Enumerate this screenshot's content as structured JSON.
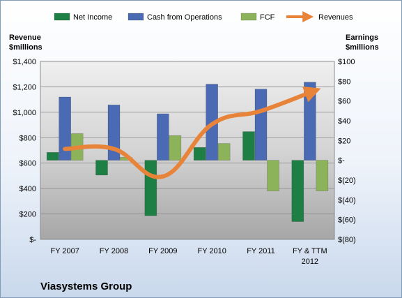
{
  "chart_data": {
    "type": "bar",
    "title": "Viasystems Group",
    "categories": [
      "FY 2007",
      "FY 2008",
      "FY 2009",
      "FY 2010",
      "FY 2011",
      "FY & TTM 2012"
    ],
    "series": [
      {
        "name": "Net Income",
        "axis": "right",
        "kind": "bar",
        "color": "#1e7f44",
        "values": [
          8,
          -15,
          -56,
          13,
          29,
          -62
        ]
      },
      {
        "name": "Cash from Operations",
        "axis": "right",
        "kind": "bar",
        "color": "#4a6ab3",
        "values": [
          64,
          56,
          47,
          77,
          72,
          79
        ]
      },
      {
        "name": "FCF",
        "axis": "right",
        "kind": "bar",
        "color": "#8db35a",
        "values": [
          27,
          3,
          25,
          17,
          -31,
          -31
        ]
      },
      {
        "name": "Revenues",
        "axis": "left",
        "kind": "line",
        "color": "#e8843a",
        "values": [
          712,
          712,
          495,
          905,
          1010,
          1155
        ]
      }
    ],
    "left_axis": {
      "label_line1": "Revenue",
      "label_line2": "$millions",
      "min": 0,
      "max": 1400,
      "ticks": [
        {
          "v": 0,
          "label": "$-"
        },
        {
          "v": 200,
          "label": "$200"
        },
        {
          "v": 400,
          "label": "$400"
        },
        {
          "v": 600,
          "label": "$600"
        },
        {
          "v": 800,
          "label": "$800"
        },
        {
          "v": 1000,
          "label": "$1,000"
        },
        {
          "v": 1200,
          "label": "$1,200"
        },
        {
          "v": 1400,
          "label": "$1,400"
        }
      ]
    },
    "right_axis": {
      "label_line1": "Earnings",
      "label_line2": "$millions",
      "min": -80,
      "max": 100,
      "ticks": [
        {
          "v": -80,
          "label": "$(80)"
        },
        {
          "v": -60,
          "label": "$(60)"
        },
        {
          "v": -40,
          "label": "$(40)"
        },
        {
          "v": -20,
          "label": "$(20)"
        },
        {
          "v": 0,
          "label": "$-"
        },
        {
          "v": 20,
          "label": "$20"
        },
        {
          "v": 40,
          "label": "$40"
        },
        {
          "v": 60,
          "label": "$60"
        },
        {
          "v": 80,
          "label": "$80"
        },
        {
          "v": 100,
          "label": "$100"
        }
      ]
    },
    "x_tick_labels": [
      [
        "FY 2007"
      ],
      [
        "FY 2008"
      ],
      [
        "FY 2009"
      ],
      [
        "FY 2010"
      ],
      [
        "FY 2011"
      ],
      [
        "FY & TTM",
        "2012"
      ]
    ],
    "grid": true,
    "legend_position": "top"
  }
}
